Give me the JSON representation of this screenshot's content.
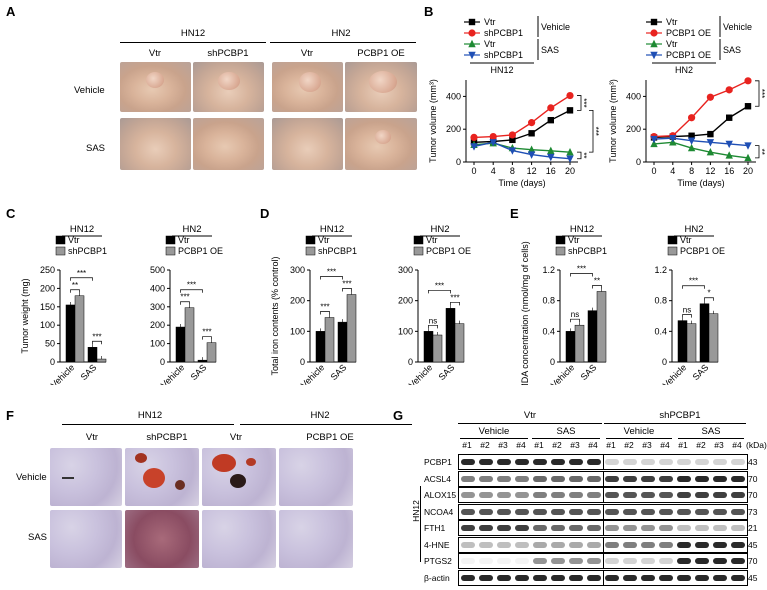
{
  "panels": {
    "A": "A",
    "B": "B",
    "C": "C",
    "D": "D",
    "E": "E",
    "F": "F",
    "G": "G"
  },
  "panelA": {
    "groups": [
      "HN12",
      "HN2"
    ],
    "cols": [
      "Vtr",
      "shPCBP1",
      "Vtr",
      "PCBP1 OE"
    ],
    "rows": [
      "Vehicle",
      "SAS"
    ]
  },
  "panelF": {
    "groups": [
      "HN12",
      "HN2"
    ],
    "cols": [
      "Vtr",
      "shPCBP1",
      "Vtr",
      "PCBP1 OE"
    ],
    "rows": [
      "Vehicle",
      "SAS"
    ]
  },
  "panelB": {
    "legend_left": {
      "items": [
        "Vtr",
        "shPCBP1",
        "Vtr",
        "shPCBP1"
      ],
      "tags": [
        "Vehicle",
        "SAS"
      ],
      "cell": "HN12"
    },
    "legend_right": {
      "items": [
        "Vtr",
        "PCBP1 OE",
        "Vtr",
        "PCBP1 OE"
      ],
      "tags": [
        "Vehicle",
        "SAS"
      ],
      "cell": "HN2"
    },
    "ylabel": "Tumor volume (mm³)",
    "xlabel": "Time (days)",
    "sig_left": [
      "***",
      "***",
      "**"
    ],
    "sig_right": [
      "***",
      "***",
      "**"
    ]
  },
  "panelC": {
    "titles": [
      "HN12",
      "HN2"
    ],
    "legend_left": [
      "Vtr",
      "shPCBP1"
    ],
    "legend_right": [
      "Vtr",
      "PCBP1 OE"
    ],
    "ylabel": "Tumor weight (mg)",
    "xcats": [
      "Vehicle",
      "SAS"
    ],
    "sig_left": [
      "**",
      "***",
      "***"
    ],
    "sig_right": [
      "***",
      "***",
      "***"
    ]
  },
  "panelD": {
    "titles": [
      "HN12",
      "HN2"
    ],
    "legend_left": [
      "Vtr",
      "shPCBP1"
    ],
    "legend_right": [
      "Vtr",
      "PCBP1 OE"
    ],
    "ylabel": "Total iron contents (% control)",
    "xcats": [
      "Vehicle",
      "SAS"
    ],
    "sig_left": [
      "***",
      "***",
      "***"
    ],
    "sig_right": [
      "ns",
      "***",
      "***"
    ]
  },
  "panelE": {
    "titles": [
      "HN12",
      "HN2"
    ],
    "legend_left": [
      "Vtr",
      "shPCBP1"
    ],
    "legend_right": [
      "Vtr",
      "PCBP1 OE"
    ],
    "ylabel": "MDA concentration (nmol/mg of cells)",
    "xcats": [
      "Vehicle",
      "SAS"
    ],
    "sig_left": [
      "ns",
      "***",
      "**"
    ],
    "sig_right": [
      "ns",
      "***",
      "*"
    ]
  },
  "panelG": {
    "top_groups": [
      "Vtr",
      "shPCBP1"
    ],
    "sub_groups": [
      "Vehicle",
      "SAS",
      "Vehicle",
      "SAS"
    ],
    "lanes": [
      "#1",
      "#2",
      "#3",
      "#4",
      "#1",
      "#2",
      "#3",
      "#4",
      "#1",
      "#2",
      "#3",
      "#4",
      "#1",
      "#2",
      "#3",
      "#4"
    ],
    "kda_label": "(kDa)",
    "side_label": "HN12",
    "proteins": [
      {
        "name": "PCBP1",
        "kda": "43"
      },
      {
        "name": "ACSL4",
        "kda": "70"
      },
      {
        "name": "ALOX15",
        "kda": "70"
      },
      {
        "name": "NCOA4",
        "kda": "73"
      },
      {
        "name": "FTH1",
        "kda": "21"
      },
      {
        "name": "4-HNE",
        "kda": "45"
      },
      {
        "name": "PTGS2",
        "kda": "70"
      },
      {
        "name": "β-actin",
        "kda": "45"
      }
    ]
  },
  "chart_data": [
    {
      "type": "line",
      "title": "HN12",
      "xlabel": "Time (days)",
      "ylabel": "Tumor volume (mm³)",
      "x": [
        0,
        4,
        8,
        12,
        16,
        20
      ],
      "ylim": [
        0,
        500
      ],
      "series": [
        {
          "name": "Vtr",
          "color": "#000000",
          "marker": "square",
          "values": [
            120,
            125,
            135,
            175,
            255,
            315
          ]
        },
        {
          "name": "shPCBP1",
          "color": "#e8231f",
          "marker": "circle",
          "values": [
            150,
            155,
            165,
            240,
            330,
            405
          ]
        },
        {
          "name": "Vtr",
          "color": "#1e8a33",
          "marker": "triangle-up",
          "values": [
            105,
            115,
            85,
            75,
            68,
            60
          ]
        },
        {
          "name": "shPCBP1",
          "color": "#1f4fb5",
          "marker": "triangle-down",
          "values": [
            95,
            120,
            70,
            45,
            30,
            20
          ]
        }
      ]
    },
    {
      "type": "line",
      "title": "HN2",
      "xlabel": "Time (days)",
      "ylabel": "Tumor volume (mm³)",
      "x": [
        0,
        4,
        8,
        12,
        16,
        20
      ],
      "ylim": [
        0,
        500
      ],
      "series": [
        {
          "name": "Vtr",
          "color": "#000000",
          "marker": "square",
          "values": [
            150,
            155,
            160,
            170,
            270,
            340
          ]
        },
        {
          "name": "PCBP1 OE",
          "color": "#e8231f",
          "marker": "circle",
          "values": [
            155,
            160,
            270,
            395,
            440,
            495
          ]
        },
        {
          "name": "Vtr",
          "color": "#1e8a33",
          "marker": "triangle-up",
          "values": [
            110,
            120,
            85,
            60,
            40,
            25
          ]
        },
        {
          "name": "PCBP1 OE",
          "color": "#1f4fb5",
          "marker": "triangle-down",
          "values": [
            140,
            145,
            130,
            120,
            110,
            100
          ]
        }
      ]
    },
    {
      "type": "bar",
      "title": "HN12",
      "ylabel": "Tumor weight (mg)",
      "categories": [
        "Vehicle",
        "SAS"
      ],
      "ylim": [
        0,
        250
      ],
      "series": [
        {
          "name": "Vtr",
          "color": "#000000",
          "values": [
            155,
            40
          ]
        },
        {
          "name": "shPCBP1",
          "color": "#999999",
          "values": [
            180,
            8
          ]
        }
      ]
    },
    {
      "type": "bar",
      "title": "HN2",
      "ylabel": "Tumor weight (mg)",
      "categories": [
        "Vehicle",
        "SAS"
      ],
      "ylim": [
        0,
        500
      ],
      "series": [
        {
          "name": "Vtr",
          "color": "#000000",
          "values": [
            190,
            10
          ]
        },
        {
          "name": "PCBP1 OE",
          "color": "#999999",
          "values": [
            295,
            105
          ]
        }
      ]
    },
    {
      "type": "bar",
      "title": "HN12",
      "ylabel": "Total iron contents (% control)",
      "categories": [
        "Vehicle",
        "SAS"
      ],
      "ylim": [
        0,
        300
      ],
      "series": [
        {
          "name": "Vtr",
          "color": "#000000",
          "values": [
            100,
            130
          ]
        },
        {
          "name": "shPCBP1",
          "color": "#999999",
          "values": [
            145,
            220
          ]
        }
      ]
    },
    {
      "type": "bar",
      "title": "HN2",
      "ylabel": "Total iron contents (% control)",
      "categories": [
        "Vehicle",
        "SAS"
      ],
      "ylim": [
        0,
        300
      ],
      "series": [
        {
          "name": "Vtr",
          "color": "#000000",
          "values": [
            100,
            175
          ]
        },
        {
          "name": "PCBP1 OE",
          "color": "#999999",
          "values": [
            88,
            125
          ]
        }
      ]
    },
    {
      "type": "bar",
      "title": "HN12",
      "ylabel": "MDA concentration (nmol/mg of cells)",
      "categories": [
        "Vehicle",
        "SAS"
      ],
      "ylim": [
        0,
        1.2
      ],
      "series": [
        {
          "name": "Vtr",
          "color": "#000000",
          "values": [
            0.4,
            0.67
          ]
        },
        {
          "name": "shPCBP1",
          "color": "#999999",
          "values": [
            0.48,
            0.92
          ]
        }
      ]
    },
    {
      "type": "bar",
      "title": "HN2",
      "ylabel": "MDA concentration (nmol/mg of cells)",
      "categories": [
        "Vehicle",
        "SAS"
      ],
      "ylim": [
        0,
        1.2
      ],
      "series": [
        {
          "name": "Vtr",
          "color": "#000000",
          "values": [
            0.54,
            0.76
          ]
        },
        {
          "name": "PCBP1 OE",
          "color": "#999999",
          "values": [
            0.5,
            0.63
          ]
        }
      ]
    }
  ]
}
